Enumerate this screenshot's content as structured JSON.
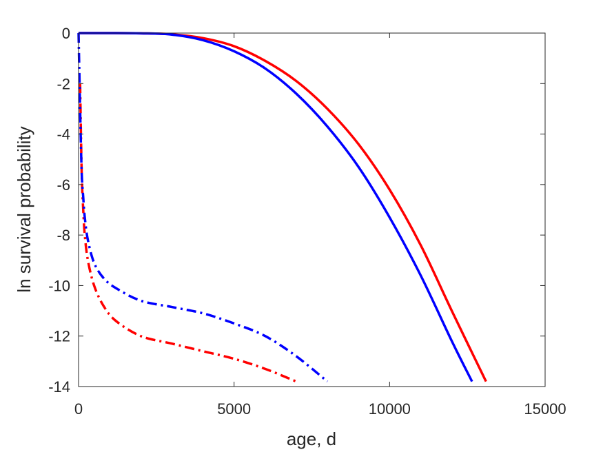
{
  "chart_data": {
    "type": "line",
    "title": "",
    "xlabel": "age, d",
    "ylabel": "ln survival probability",
    "xlim": [
      0,
      15000
    ],
    "ylim": [
      -14,
      0
    ],
    "xticks": [
      0,
      5000,
      10000,
      15000
    ],
    "yticks": [
      0,
      -2,
      -4,
      -6,
      -8,
      -10,
      -12,
      -14
    ],
    "xtick_labels": [
      "0",
      "5000",
      "10000",
      "15000"
    ],
    "ytick_labels": [
      "0",
      "-2",
      "-4",
      "-6",
      "-8",
      "-10",
      "-12",
      "-14"
    ],
    "grid": false,
    "legend": null,
    "series": [
      {
        "color": "#ff0000",
        "style": "solid",
        "x": [
          0,
          1000,
          2000,
          3000,
          4000,
          5000,
          6000,
          7000,
          8000,
          9000,
          10000,
          11000,
          12000,
          13100
        ],
        "y": [
          0,
          0,
          -0.01,
          -0.05,
          -0.2,
          -0.52,
          -1.1,
          -1.9,
          -3.0,
          -4.4,
          -6.2,
          -8.4,
          -11.0,
          -13.8
        ]
      },
      {
        "color": "#0000ff",
        "style": "solid",
        "x": [
          0,
          1000,
          2000,
          3000,
          4000,
          5000,
          6000,
          7000,
          8000,
          9000,
          10000,
          11000,
          12000,
          12650
        ],
        "y": [
          0,
          0,
          -0.01,
          -0.06,
          -0.28,
          -0.72,
          -1.4,
          -2.4,
          -3.7,
          -5.3,
          -7.3,
          -9.6,
          -12.2,
          -13.8
        ]
      },
      {
        "color": "#ff0000",
        "style": "dashdot",
        "x": [
          50,
          100,
          150,
          200,
          300,
          500,
          800,
          1200,
          2000,
          3000,
          4000,
          5000,
          6000,
          7000
        ],
        "y": [
          -2,
          -5.5,
          -7,
          -8,
          -9,
          -10,
          -10.8,
          -11.4,
          -12,
          -12.3,
          -12.6,
          -12.9,
          -13.3,
          -13.8
        ]
      },
      {
        "color": "#0000ff",
        "style": "dashdot",
        "x": [
          0,
          50,
          100,
          150,
          200,
          300,
          500,
          800,
          1200,
          2000,
          3000,
          4000,
          5000,
          6000,
          7000,
          8000
        ],
        "y": [
          0,
          -3,
          -5.5,
          -6.5,
          -7.3,
          -8.2,
          -9.1,
          -9.7,
          -10.1,
          -10.6,
          -10.85,
          -11.1,
          -11.5,
          -12.0,
          -12.8,
          -13.8
        ]
      }
    ]
  }
}
